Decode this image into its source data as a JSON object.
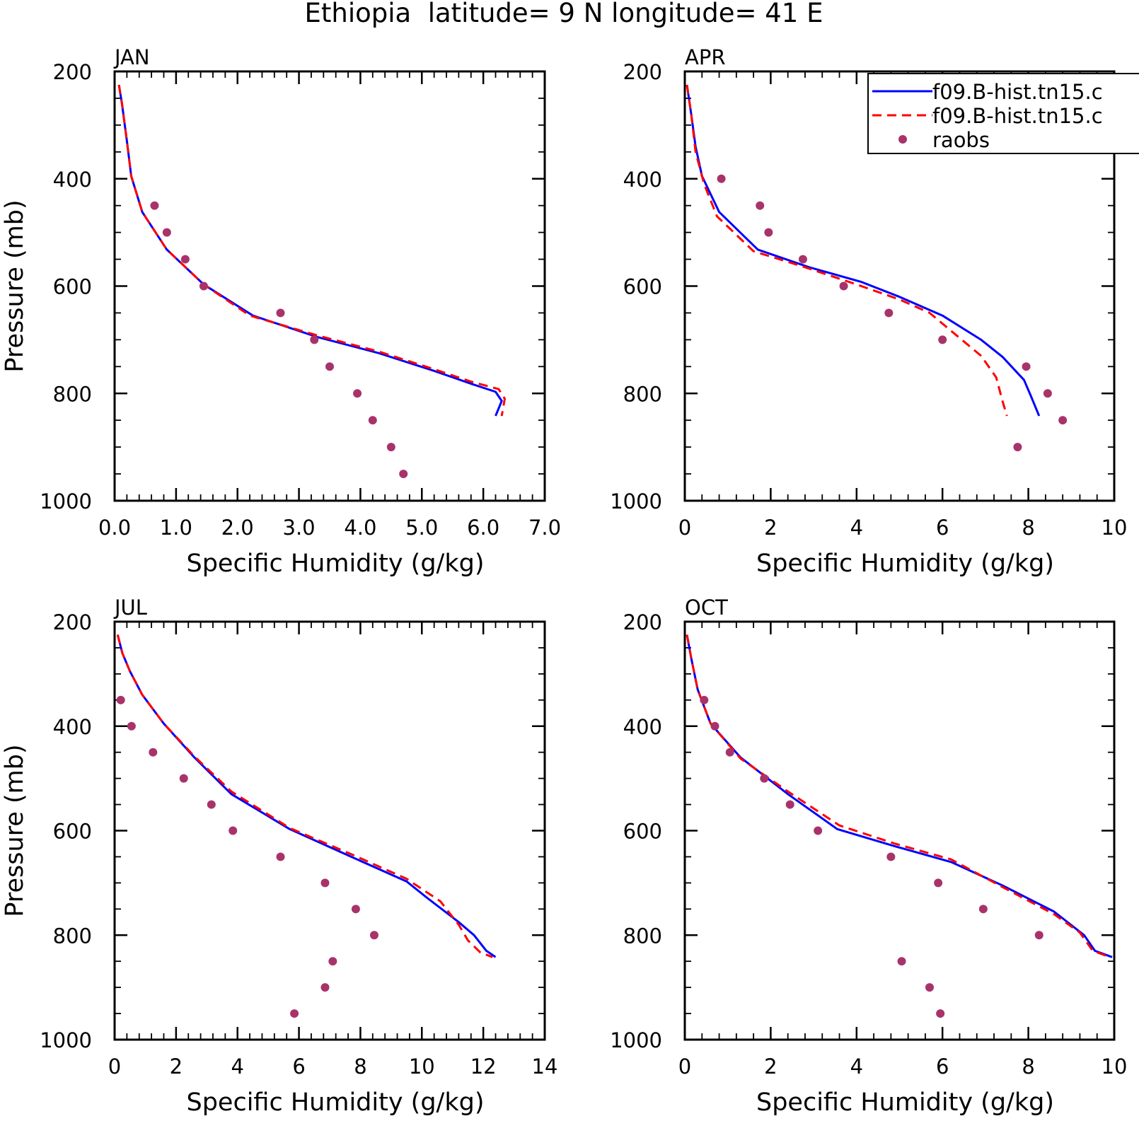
{
  "figure": {
    "title": "Ethiopia  latitude= 9 N longitude= 41 E",
    "colors": {
      "run1": "#0000ff",
      "run2": "#ff0000",
      "obs": "#a8336a"
    },
    "legend": {
      "placement": "top-right of APR panel",
      "entries": [
        "f09.B-hist.tn15.c",
        "f09.B-hist.tn15.c",
        "raobs"
      ]
    }
  },
  "chart_data": [
    {
      "type": "line",
      "panel": "JAN",
      "xlabel": "Specific Humidity (g/kg)",
      "ylabel": "Pressure (mb)",
      "xlim": [
        0,
        7
      ],
      "xticks": [
        "0.0",
        "1.0",
        "2.0",
        "3.0",
        "4.0",
        "5.0",
        "6.0",
        "7.0"
      ],
      "xtick_values": [
        0,
        1,
        2,
        3,
        4,
        5,
        6,
        7
      ],
      "ylim": [
        200,
        1000
      ],
      "yticks": [
        "200",
        "400",
        "600",
        "800",
        "1000"
      ],
      "y_inverted": true,
      "series": [
        {
          "name": "f09.B-hist.tn15.c",
          "style": "solid",
          "color": "#0000ff",
          "points": [
            [
              0.07,
              225
            ],
            [
              0.12,
              260
            ],
            [
              0.2,
              330
            ],
            [
              0.27,
              395
            ],
            [
              0.45,
              462
            ],
            [
              0.85,
              532
            ],
            [
              1.45,
              597
            ],
            [
              2.25,
              655
            ],
            [
              3.3,
              695
            ],
            [
              4.3,
              725
            ],
            [
              5.2,
              758
            ],
            [
              5.8,
              782
            ],
            [
              6.2,
              797
            ],
            [
              6.3,
              814
            ],
            [
              6.2,
              842
            ]
          ]
        },
        {
          "name": "f09.B-hist.tn15.c",
          "style": "dashed",
          "color": "#ff0000",
          "points": [
            [
              0.07,
              225
            ],
            [
              0.12,
              260
            ],
            [
              0.2,
              330
            ],
            [
              0.27,
              395
            ],
            [
              0.45,
              462
            ],
            [
              0.85,
              532
            ],
            [
              1.45,
              597
            ],
            [
              2.2,
              655
            ],
            [
              3.3,
              692
            ],
            [
              4.3,
              722
            ],
            [
              5.2,
              755
            ],
            [
              5.8,
              778
            ],
            [
              6.25,
              792
            ],
            [
              6.35,
              810
            ],
            [
              6.3,
              842
            ]
          ]
        },
        {
          "name": "raobs",
          "style": "points",
          "color": "#a8336a",
          "points": [
            [
              0.65,
              450
            ],
            [
              0.85,
              500
            ],
            [
              1.15,
              550
            ],
            [
              1.45,
              600
            ],
            [
              2.7,
              650
            ],
            [
              3.25,
              700
            ],
            [
              3.5,
              750
            ],
            [
              3.95,
              800
            ],
            [
              4.2,
              850
            ],
            [
              4.5,
              900
            ],
            [
              4.7,
              950
            ]
          ]
        }
      ]
    },
    {
      "type": "line",
      "panel": "APR",
      "xlabel": "Specific Humidity (g/kg)",
      "ylabel": "",
      "xlim": [
        0,
        10
      ],
      "xticks": [
        "0",
        "2",
        "4",
        "6",
        "8",
        "10"
      ],
      "xtick_values": [
        0,
        2,
        4,
        6,
        8,
        10
      ],
      "ylim": [
        200,
        1000
      ],
      "yticks": [
        "200",
        "400",
        "600",
        "800",
        "1000"
      ],
      "y_inverted": true,
      "series": [
        {
          "name": "f09.B-hist.tn15.c",
          "style": "solid",
          "color": "#0000ff",
          "points": [
            [
              0.05,
              225
            ],
            [
              0.15,
              280
            ],
            [
              0.25,
              340
            ],
            [
              0.4,
              395
            ],
            [
              0.8,
              462
            ],
            [
              1.7,
              532
            ],
            [
              2.9,
              565
            ],
            [
              4.1,
              592
            ],
            [
              5.0,
              620
            ],
            [
              6.0,
              655
            ],
            [
              6.9,
              700
            ],
            [
              7.4,
              732
            ],
            [
              7.9,
              775
            ],
            [
              8.05,
              803
            ],
            [
              8.25,
              842
            ]
          ]
        },
        {
          "name": "f09.B-hist.tn15.c",
          "style": "dashed",
          "color": "#ff0000",
          "points": [
            [
              0.05,
              225
            ],
            [
              0.15,
              280
            ],
            [
              0.25,
              350
            ],
            [
              0.45,
              410
            ],
            [
              0.75,
              470
            ],
            [
              1.6,
              535
            ],
            [
              2.8,
              565
            ],
            [
              4.0,
              597
            ],
            [
              5.0,
              625
            ],
            [
              5.7,
              650
            ],
            [
              6.3,
              690
            ],
            [
              6.9,
              730
            ],
            [
              7.25,
              770
            ],
            [
              7.4,
              815
            ],
            [
              7.5,
              842
            ]
          ]
        },
        {
          "name": "raobs",
          "style": "points",
          "color": "#a8336a",
          "points": [
            [
              0.85,
              400
            ],
            [
              1.75,
              450
            ],
            [
              1.95,
              500
            ],
            [
              2.75,
              550
            ],
            [
              3.7,
              600
            ],
            [
              4.75,
              650
            ],
            [
              6.0,
              700
            ],
            [
              7.95,
              750
            ],
            [
              8.45,
              800
            ],
            [
              8.8,
              850
            ],
            [
              7.75,
              900
            ]
          ]
        }
      ]
    },
    {
      "type": "line",
      "panel": "JUL",
      "xlabel": "Specific Humidity (g/kg)",
      "ylabel": "Pressure (mb)",
      "xlim": [
        0,
        14
      ],
      "xticks": [
        "0",
        "2",
        "4",
        "6",
        "8",
        "10",
        "12",
        "14"
      ],
      "xtick_values": [
        0,
        2,
        4,
        6,
        8,
        10,
        12,
        14
      ],
      "ylim": [
        200,
        1000
      ],
      "yticks": [
        "200",
        "400",
        "600",
        "800",
        "1000"
      ],
      "y_inverted": true,
      "series": [
        {
          "name": "f09.B-hist.tn15.c",
          "style": "solid",
          "color": "#0000ff",
          "points": [
            [
              0.1,
              225
            ],
            [
              0.25,
              260
            ],
            [
              0.5,
              295
            ],
            [
              0.9,
              340
            ],
            [
              1.6,
              395
            ],
            [
              2.6,
              460
            ],
            [
              3.8,
              530
            ],
            [
              5.7,
              597
            ],
            [
              7.7,
              650
            ],
            [
              9.5,
              697
            ],
            [
              10.2,
              730
            ],
            [
              11.2,
              775
            ],
            [
              11.7,
              800
            ],
            [
              12.1,
              830
            ],
            [
              12.4,
              842
            ]
          ]
        },
        {
          "name": "f09.B-hist.tn15.c",
          "style": "dashed",
          "color": "#ff0000",
          "points": [
            [
              0.1,
              225
            ],
            [
              0.25,
              260
            ],
            [
              0.5,
              295
            ],
            [
              0.9,
              340
            ],
            [
              1.6,
              395
            ],
            [
              2.6,
              458
            ],
            [
              3.8,
              525
            ],
            [
              5.7,
              595
            ],
            [
              7.7,
              645
            ],
            [
              9.5,
              692
            ],
            [
              10.6,
              735
            ],
            [
              11.2,
              780
            ],
            [
              11.5,
              810
            ],
            [
              11.9,
              833
            ],
            [
              12.3,
              842
            ]
          ]
        },
        {
          "name": "raobs",
          "style": "points",
          "color": "#a8336a",
          "points": [
            [
              0.2,
              350
            ],
            [
              0.55,
              400
            ],
            [
              1.25,
              450
            ],
            [
              2.25,
              500
            ],
            [
              3.15,
              550
            ],
            [
              3.85,
              600
            ],
            [
              5.4,
              650
            ],
            [
              6.85,
              700
            ],
            [
              7.85,
              750
            ],
            [
              8.45,
              800
            ],
            [
              7.1,
              850
            ],
            [
              6.85,
              900
            ],
            [
              5.85,
              950
            ]
          ]
        }
      ]
    },
    {
      "type": "line",
      "panel": "OCT",
      "xlabel": "Specific Humidity (g/kg)",
      "ylabel": "",
      "xlim": [
        0,
        10
      ],
      "xticks": [
        "0",
        "2",
        "4",
        "6",
        "8",
        "10"
      ],
      "xtick_values": [
        0,
        2,
        4,
        6,
        8,
        10
      ],
      "ylim": [
        200,
        1000
      ],
      "yticks": [
        "200",
        "400",
        "600",
        "800",
        "1000"
      ],
      "y_inverted": true,
      "series": [
        {
          "name": "f09.B-hist.tn15.c",
          "style": "solid",
          "color": "#0000ff",
          "points": [
            [
              0.05,
              225
            ],
            [
              0.15,
              270
            ],
            [
              0.3,
              330
            ],
            [
              0.6,
              395
            ],
            [
              1.3,
              460
            ],
            [
              2.4,
              530
            ],
            [
              3.55,
              597
            ],
            [
              4.9,
              630
            ],
            [
              6.2,
              660
            ],
            [
              7.4,
              705
            ],
            [
              8.6,
              755
            ],
            [
              9.3,
              800
            ],
            [
              9.55,
              830
            ],
            [
              9.95,
              842
            ]
          ]
        },
        {
          "name": "f09.B-hist.tn15.c",
          "style": "dashed",
          "color": "#ff0000",
          "points": [
            [
              0.05,
              225
            ],
            [
              0.15,
              270
            ],
            [
              0.3,
              330
            ],
            [
              0.6,
              395
            ],
            [
              1.3,
              462
            ],
            [
              2.4,
              525
            ],
            [
              3.6,
              590
            ],
            [
              4.9,
              625
            ],
            [
              6.2,
              655
            ],
            [
              7.4,
              708
            ],
            [
              8.6,
              760
            ],
            [
              9.2,
              795
            ],
            [
              9.5,
              830
            ],
            [
              9.9,
              842
            ]
          ]
        },
        {
          "name": "raobs",
          "style": "points",
          "color": "#a8336a",
          "points": [
            [
              0.45,
              350
            ],
            [
              0.7,
              400
            ],
            [
              1.05,
              450
            ],
            [
              1.85,
              500
            ],
            [
              2.45,
              550
            ],
            [
              3.1,
              600
            ],
            [
              4.8,
              650
            ],
            [
              5.9,
              700
            ],
            [
              6.95,
              750
            ],
            [
              8.25,
              800
            ],
            [
              5.05,
              850
            ],
            [
              5.7,
              900
            ],
            [
              5.95,
              950
            ]
          ]
        }
      ]
    }
  ]
}
